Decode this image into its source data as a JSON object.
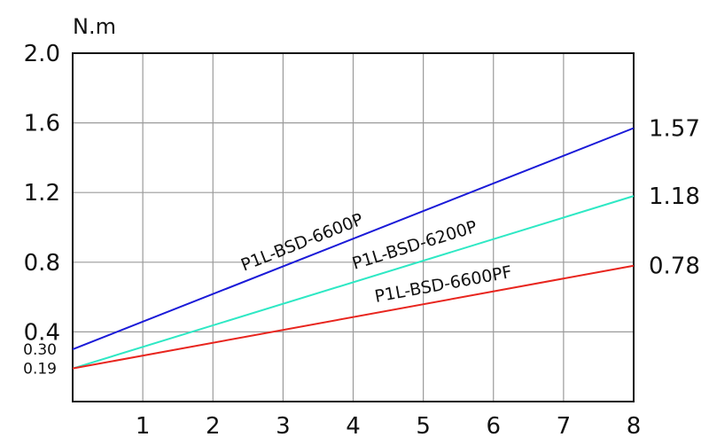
{
  "chart_data": {
    "type": "line",
    "title": "",
    "xlabel": "",
    "ylabel": "N.m",
    "xlim": [
      0,
      8
    ],
    "ylim": [
      0,
      2.0
    ],
    "x_ticks": [
      "1",
      "2",
      "3",
      "4",
      "5",
      "6",
      "7",
      "8"
    ],
    "y_ticks": [
      "2.0",
      "1.6",
      "1.2",
      "0.8",
      "0.4"
    ],
    "y_ticks_values": [
      2.0,
      1.6,
      1.2,
      0.8,
      0.4
    ],
    "y_ticks_small": [
      "0.30",
      "0.19"
    ],
    "y_ticks_small_values": [
      0.3,
      0.19
    ],
    "grid": true,
    "series": [
      {
        "name": "P1L-BSD-6600P",
        "color": "#1a1ad8",
        "x": [
          0,
          8
        ],
        "y": [
          0.3,
          1.57
        ],
        "end_label": "1.57"
      },
      {
        "name": "P1L-BSD-6200P",
        "color": "#2ee8c4",
        "x": [
          0,
          8
        ],
        "y": [
          0.19,
          1.18
        ],
        "end_label": "1.18"
      },
      {
        "name": "P1L-BSD-6600PF",
        "color": "#e8251e",
        "x": [
          0,
          8
        ],
        "y": [
          0.19,
          0.78
        ],
        "end_label": "0.78"
      }
    ]
  }
}
